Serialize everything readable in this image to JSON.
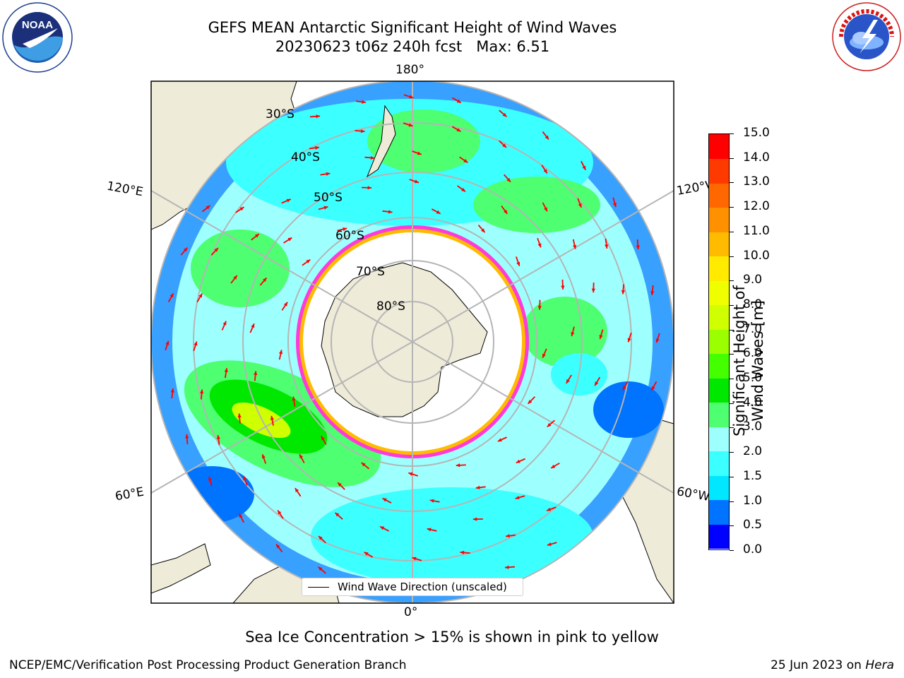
{
  "title": {
    "line1": "GEFS MEAN Antarctic Significant Height of Wind Waves",
    "line2": "20230623 t06z 240h fcst   Max: 6.51"
  },
  "map": {
    "lon_labels": {
      "top": "180°",
      "bottom": "0°",
      "upper_left": "120°E",
      "upper_right": "120°W",
      "lower_left": "60°E",
      "lower_right": "60°W"
    },
    "lat_labels": [
      "30°S",
      "40°S",
      "50°S",
      "60°S",
      "70°S",
      "80°S"
    ],
    "legend": "Wind Wave Direction (unscaled)",
    "projection": "south polar stereographic",
    "colors": {
      "land": "#efebd9",
      "ice_shelf": "#ffffff",
      "sea_ice": "#ff3ad9",
      "arrows": "#ff0000",
      "grid": "#b5b5b5"
    }
  },
  "colorbar": {
    "label": "Significant Height of Wind Waves [m]",
    "ticks": [
      "0.0",
      "0.5",
      "1.0",
      "1.5",
      "2.0",
      "3.0",
      "4.0",
      "5.0",
      "6.0",
      "7.0",
      "8.0",
      "9.0",
      "10.0",
      "11.0",
      "12.0",
      "13.0",
      "14.0",
      "15.0"
    ],
    "colors": [
      "#0000ff",
      "#0073ff",
      "#00e7ff",
      "#3cffff",
      "#9effff",
      "#4dff71",
      "#00e800",
      "#43ff00",
      "#9cff00",
      "#cfff00",
      "#f0ff00",
      "#ffea00",
      "#ffbb00",
      "#ff9000",
      "#ff6700",
      "#ff3a00",
      "#ff0000"
    ]
  },
  "caption": "Sea Ice Concentration > 15% is shown in pink to yellow",
  "footer": {
    "left": "NCEP/EMC/Verification Post Processing Product Generation Branch",
    "right_date": "25 Jun 2023 on ",
    "right_host": "Hera"
  },
  "logos": {
    "left": {
      "icon": "noaa-logo",
      "text": "NOAA"
    },
    "right": {
      "icon": "national-weather-service-logo",
      "text": "NATIONAL WEATHER SERVICE"
    }
  }
}
